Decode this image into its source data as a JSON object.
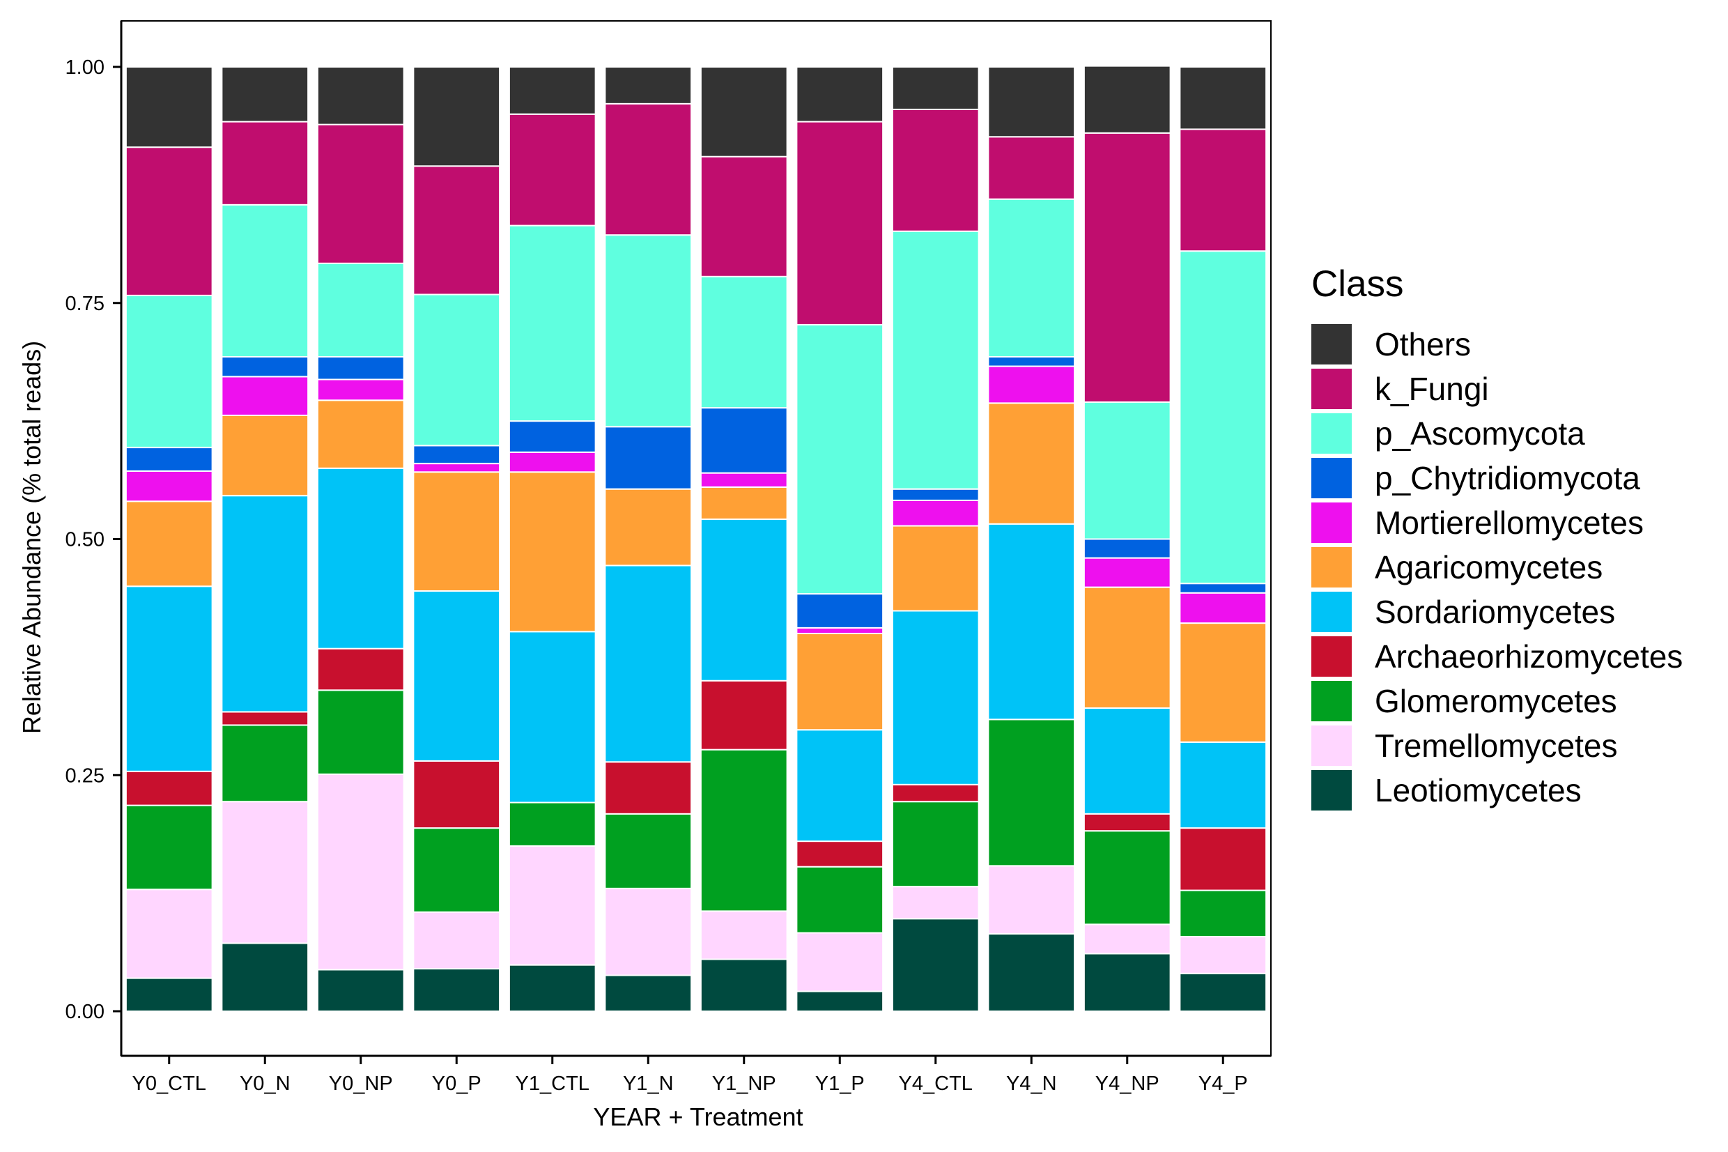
{
  "chart_data": {
    "type": "bar",
    "stacked": true,
    "title": "",
    "xlabel": "YEAR + Treatment",
    "ylabel": "Relative Abundance (% total reads)",
    "ylim": [
      0,
      1
    ],
    "yticks": [
      0,
      0.25,
      0.5,
      0.75,
      1
    ],
    "ytick_labels": [
      "0.00",
      "0.25",
      "0.50",
      "0.75",
      "1.00"
    ],
    "grid": false,
    "legend": {
      "title": "Class",
      "position": "right"
    },
    "categories": [
      "Y0_CTL",
      "Y0_N",
      "Y0_NP",
      "Y0_P",
      "Y1_CTL",
      "Y1_N",
      "Y1_NP",
      "Y1_P",
      "Y4_CTL",
      "Y4_N",
      "Y4_NP",
      "Y4_P"
    ],
    "series": [
      {
        "name": "Leotiomycetes",
        "color": "#004a3f",
        "values": [
          0.035,
          0.072,
          0.044,
          0.045,
          0.049,
          0.038,
          0.055,
          0.021,
          0.098,
          0.082,
          0.061,
          0.04
        ]
      },
      {
        "name": "Tremellomycetes",
        "color": "#ffd6ff",
        "values": [
          0.094,
          0.15,
          0.207,
          0.06,
          0.126,
          0.092,
          0.051,
          0.062,
          0.034,
          0.072,
          0.031,
          0.039
        ]
      },
      {
        "name": "Glomeromycetes",
        "color": "#00a020",
        "values": [
          0.089,
          0.081,
          0.089,
          0.089,
          0.046,
          0.079,
          0.171,
          0.07,
          0.09,
          0.155,
          0.099,
          0.049
        ]
      },
      {
        "name": "Archaeorhizomycetes",
        "color": "#c8102e",
        "values": [
          0.036,
          0.014,
          0.044,
          0.071,
          0.0,
          0.055,
          0.073,
          0.027,
          0.018,
          0.0,
          0.018,
          0.066
        ]
      },
      {
        "name": "Sordariomycetes",
        "color": "#00c3f7",
        "values": [
          0.196,
          0.229,
          0.191,
          0.18,
          0.181,
          0.208,
          0.171,
          0.118,
          0.184,
          0.207,
          0.112,
          0.091
        ]
      },
      {
        "name": "Agaricomycetes",
        "color": "#ffa035",
        "values": [
          0.09,
          0.085,
          0.072,
          0.126,
          0.169,
          0.081,
          0.034,
          0.102,
          0.09,
          0.128,
          0.128,
          0.126
        ]
      },
      {
        "name": "Mortierellomycetes",
        "color": "#ee10ee",
        "values": [
          0.032,
          0.041,
          0.022,
          0.009,
          0.021,
          0.0,
          0.015,
          0.006,
          0.027,
          0.039,
          0.031,
          0.032
        ]
      },
      {
        "name": "p_Chytridiomycota",
        "color": "#0062e0",
        "values": [
          0.025,
          0.021,
          0.024,
          0.019,
          0.033,
          0.066,
          0.069,
          0.036,
          0.012,
          0.01,
          0.02,
          0.01
        ]
      },
      {
        "name": "p_Ascomycota",
        "color": "#5fffdf",
        "values": [
          0.161,
          0.161,
          0.099,
          0.16,
          0.207,
          0.203,
          0.139,
          0.285,
          0.273,
          0.167,
          0.145,
          0.352
        ]
      },
      {
        "name": "k_Fungi",
        "color": "#c00d6e",
        "values": [
          0.157,
          0.088,
          0.147,
          0.136,
          0.118,
          0.139,
          0.127,
          0.215,
          0.129,
          0.066,
          0.285,
          0.129
        ]
      },
      {
        "name": "Others",
        "color": "#333333",
        "values": [
          0.085,
          0.058,
          0.061,
          0.105,
          0.05,
          0.039,
          0.095,
          0.058,
          0.045,
          0.074,
          0.071,
          0.066
        ]
      }
    ]
  }
}
